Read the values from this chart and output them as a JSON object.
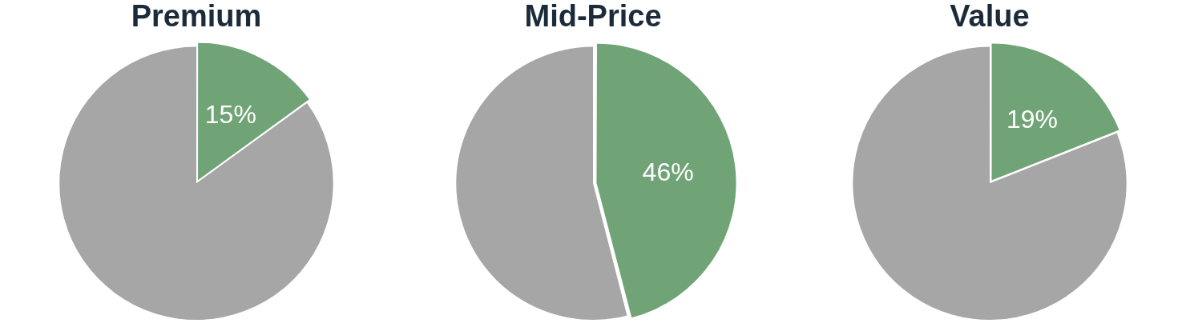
{
  "chart_data": [
    {
      "type": "pie",
      "title": "Premium",
      "categories": [
        null,
        null
      ],
      "values": [
        15,
        85
      ],
      "colors": [
        "#70a477",
        "#a6a6a6"
      ],
      "value_labels": [
        "15%",
        null
      ]
    },
    {
      "type": "pie",
      "title": "Mid-Price",
      "categories": [
        null,
        null
      ],
      "values": [
        46,
        54
      ],
      "colors": [
        "#70a477",
        "#a6a6a6"
      ],
      "value_labels": [
        "46%",
        null
      ]
    },
    {
      "type": "pie",
      "title": "Value",
      "categories": [
        null,
        null
      ],
      "values": [
        19,
        81
      ],
      "colors": [
        "#70a477",
        "#a6a6a6"
      ],
      "value_labels": [
        "19%",
        null
      ]
    }
  ]
}
